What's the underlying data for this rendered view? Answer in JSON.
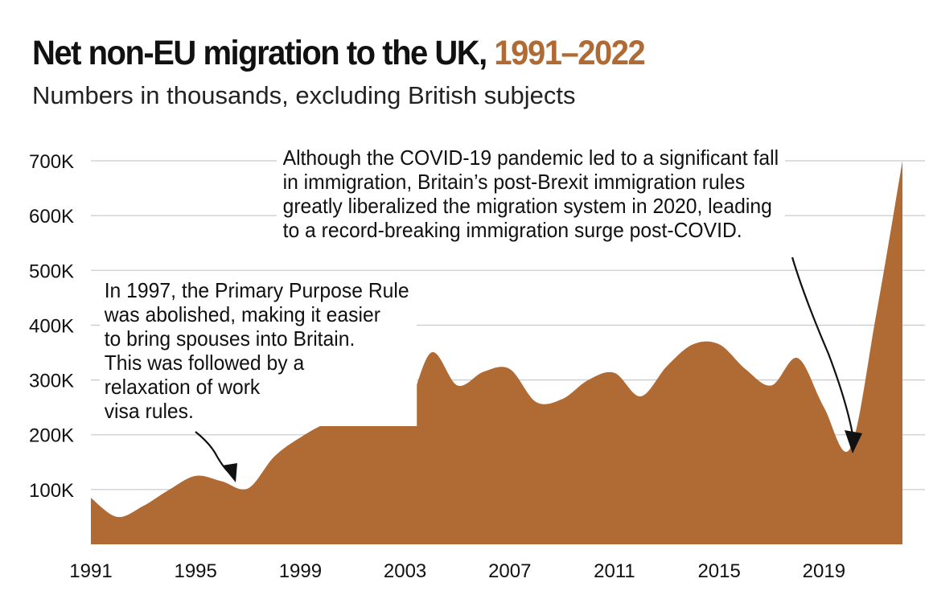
{
  "header": {
    "title_main": "Net non-EU migration to the UK,",
    "title_years": "1991–2022",
    "subtitle": "Numbers in thousands, excluding British subjects"
  },
  "colors": {
    "area": "#b06a34",
    "accent": "#b06a34",
    "grid": "#cccccc",
    "text": "#111111"
  },
  "annotations": {
    "covid": [
      "Although the COVID-19 pandemic led to a significant fall",
      "in immigration, Britain’s post-Brexit immigration rules",
      "greatly liberalized the migration system in 2020, leading",
      "to a record-breaking immigration surge post-COVID."
    ],
    "ppr": [
      "In 1997, the Primary Purpose Rule",
      "was abolished, making it easier",
      "to bring spouses into Britain.",
      "This was followed by a",
      "relaxation of work",
      "visa rules."
    ]
  },
  "chart_data": {
    "type": "area",
    "title": "Net non-EU migration to the UK, 1991–2022",
    "subtitle": "Numbers in thousands, excluding British subjects",
    "xlabel": "",
    "ylabel": "",
    "ylim": [
      0,
      700
    ],
    "xlim": [
      1991,
      2022
    ],
    "y_ticks": [
      100,
      200,
      300,
      400,
      500,
      600,
      700
    ],
    "y_tick_labels": [
      "100K",
      "200K",
      "300K",
      "400K",
      "500K",
      "600K",
      "700K"
    ],
    "x_ticks": [
      1991,
      1995,
      1999,
      2003,
      2007,
      2011,
      2015,
      2019
    ],
    "x_tick_labels": [
      "1991",
      "1995",
      "1999",
      "2003",
      "2007",
      "2011",
      "2015",
      "2019"
    ],
    "grid": true,
    "series": [
      {
        "name": "Net non-EU migration (thousands)",
        "x": [
          1991,
          1992,
          1993,
          1994,
          1995,
          1996,
          1997,
          1998,
          1999,
          2000,
          2001,
          2002,
          2003,
          2004,
          2005,
          2006,
          2007,
          2008,
          2009,
          2010,
          2011,
          2012,
          2013,
          2014,
          2015,
          2016,
          2017,
          2018,
          2019,
          2020,
          2021,
          2022
        ],
        "values": [
          85,
          50,
          70,
          100,
          125,
          115,
          102,
          160,
          195,
          220,
          222,
          240,
          240,
          350,
          290,
          315,
          320,
          260,
          265,
          300,
          313,
          270,
          325,
          365,
          365,
          320,
          290,
          340,
          250,
          175,
          420,
          700
        ]
      }
    ]
  }
}
